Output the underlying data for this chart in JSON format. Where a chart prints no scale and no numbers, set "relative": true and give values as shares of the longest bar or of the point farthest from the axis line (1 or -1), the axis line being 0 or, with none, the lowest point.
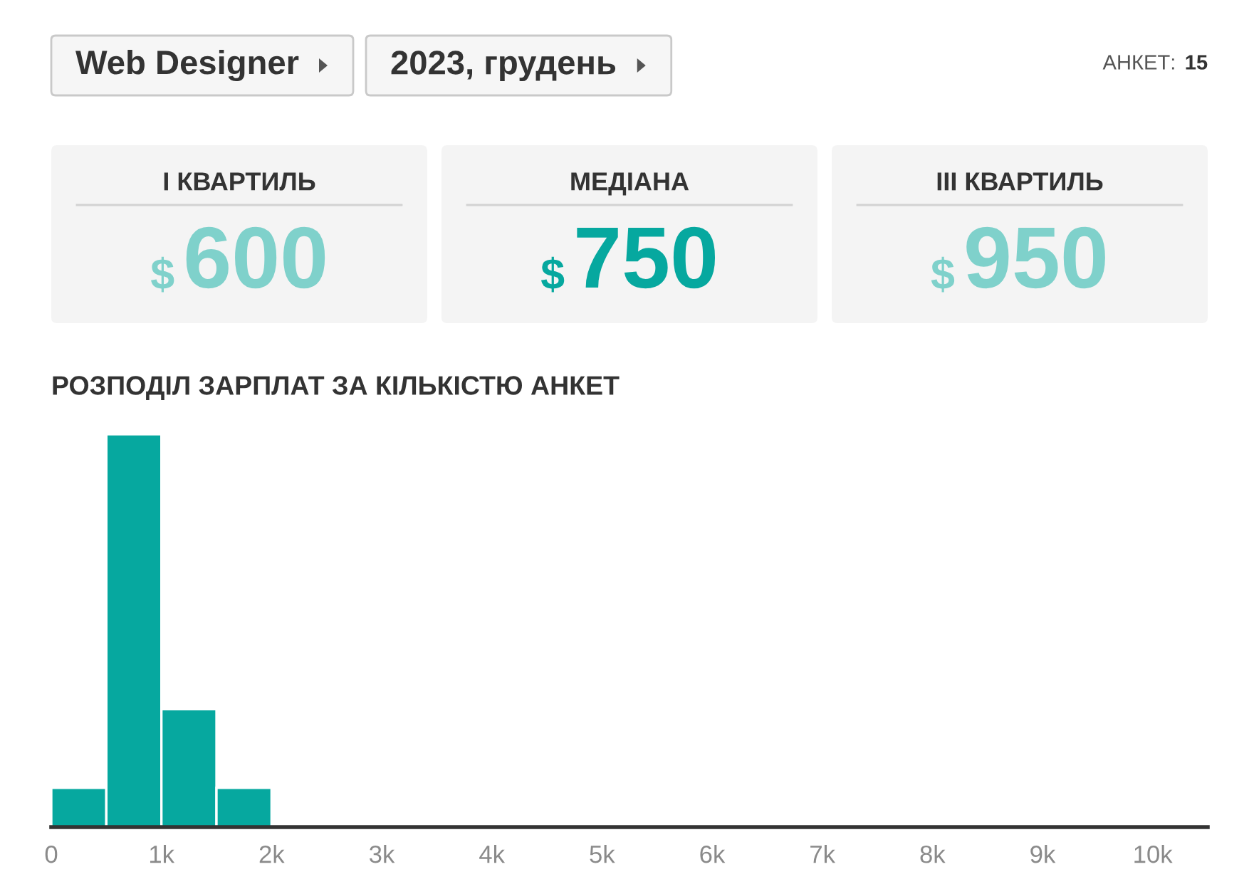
{
  "chart_data": {
    "type": "bar",
    "title": "РОЗПОДІЛ ЗАРПЛАТ ЗА КІЛЬКІСТЮ АНКЕТ",
    "annotations": [
      "Web Designer",
      "2023, грудень",
      "АНКЕТ:",
      "15",
      "I КВАРТИЛЬ",
      "$",
      "600",
      "МЕДІАНА",
      "$",
      "750",
      "III КВАРТИЛЬ",
      "$",
      "950"
    ],
    "x": [
      250,
      750,
      1250,
      1750
    ],
    "values": [
      0.1,
      1,
      0.3,
      0.1
    ],
    "relative": true,
    "color": "#06a89f",
    "xlim": [
      0,
      10500
    ],
    "xticks": [
      0,
      {
        "value": 1000,
        "label": "1k"
      },
      {
        "value": 2000,
        "label": "2k"
      },
      {
        "value": 3000,
        "label": "3k"
      },
      {
        "value": 4000,
        "label": "4k"
      },
      {
        "value": 5000,
        "label": "5k"
      },
      {
        "value": 6000,
        "label": "6k"
      },
      {
        "value": 7000,
        "label": "7k"
      },
      {
        "value": 8000,
        "label": "8k"
      },
      {
        "value": 9000,
        "label": "9k"
      },
      {
        "value": 10000,
        "label": "10k"
      }
    ],
    "tick_labels": "x"
  }
}
